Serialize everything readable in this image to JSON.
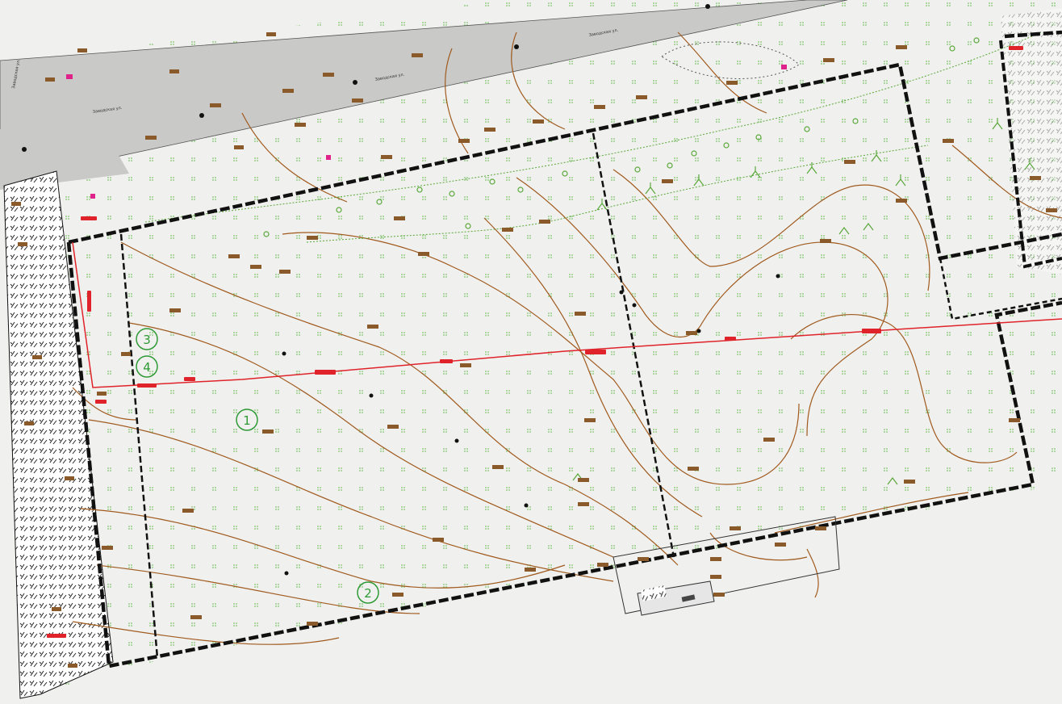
{
  "map": {
    "colors": {
      "background": "#f0f0ee",
      "road": "#c9c9c7",
      "contour": "#a05a1e",
      "elevation_label": "#8b5a2b",
      "boundary": "#111111",
      "power_line": "#e0232a",
      "vegetation": "#5aa83a",
      "hatch_strip": "#ffffff",
      "marker": "#2e9a35",
      "poi": "#e0238a"
    },
    "road_labels": [
      "Заводская ул.",
      "Заводская ул.",
      "Заводская ул.",
      "Заводская ул."
    ],
    "markers": [
      {
        "id": "1",
        "label": "1"
      },
      {
        "id": "2",
        "label": "2"
      },
      {
        "id": "3",
        "label": "3"
      },
      {
        "id": "4",
        "label": "4"
      }
    ]
  }
}
